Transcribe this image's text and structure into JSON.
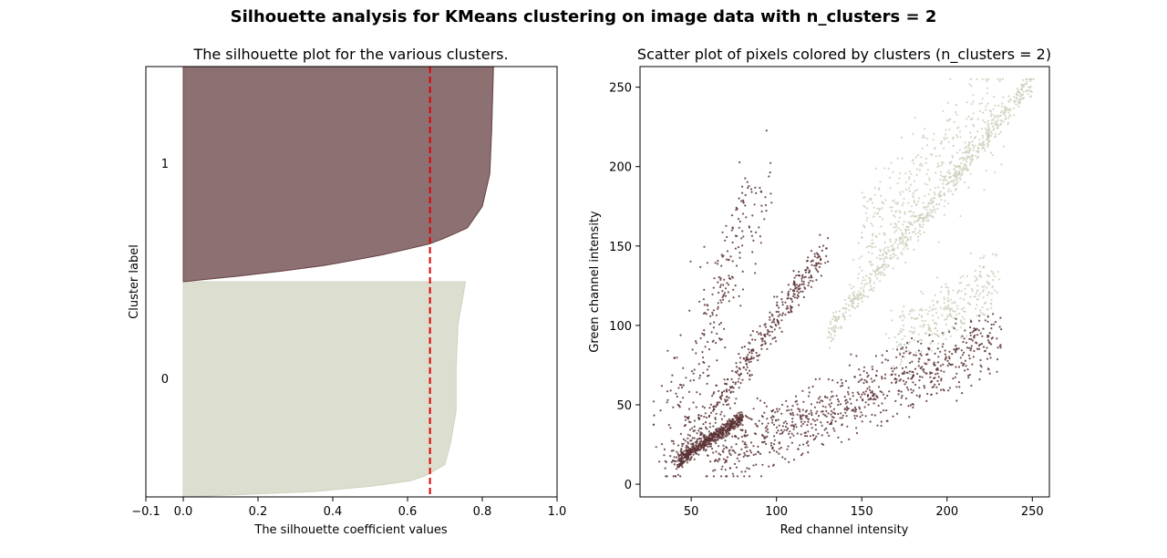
{
  "suptitle": "Silhouette analysis for KMeans clustering on image data with n_clusters = 2",
  "colors": {
    "cluster_0": "#cdd0bc",
    "cluster_1": "#5c3436",
    "avg_line": "#e00000"
  },
  "chart_data": [
    {
      "type": "area",
      "title": "The silhouette plot for the various clusters.",
      "xlabel": "The silhouette coefficient values",
      "ylabel": "Cluster label",
      "xlim": [
        -0.1,
        1.0
      ],
      "xticks": [
        -0.1,
        0.0,
        0.2,
        0.4,
        0.6,
        0.8,
        1.0
      ],
      "xtick_labels": [
        "−0.1",
        "0.0",
        "0.2",
        "0.4",
        "0.6",
        "0.8",
        "1.0"
      ],
      "average_silhouette": 0.66,
      "clusters": [
        {
          "label": "0",
          "color": "#cdd0bc",
          "alpha": 0.7,
          "profile": [
            [
              0.0,
              0.755
            ],
            [
              0.1,
              0.745
            ],
            [
              0.2,
              0.735
            ],
            [
              0.4,
              0.73
            ],
            [
              0.6,
              0.73
            ],
            [
              0.75,
              0.715
            ],
            [
              0.85,
              0.7
            ],
            [
              0.92,
              0.63
            ],
            [
              0.97,
              0.42
            ],
            [
              1.0,
              0.0
            ]
          ]
        },
        {
          "label": "1",
          "color": "#5c3436",
          "alpha": 0.7,
          "profile": [
            [
              0.0,
              0.83
            ],
            [
              0.3,
              0.825
            ],
            [
              0.5,
              0.82
            ],
            [
              0.65,
              0.8
            ],
            [
              0.75,
              0.76
            ],
            [
              0.82,
              0.67
            ],
            [
              0.88,
              0.52
            ],
            [
              0.93,
              0.36
            ],
            [
              0.97,
              0.17
            ],
            [
              1.0,
              0.0
            ]
          ]
        }
      ],
      "grid": false
    },
    {
      "type": "scatter",
      "title": "Scatter plot of pixels colored by clusters (n_clusters = 2)",
      "xlabel": "Red channel intensity",
      "ylabel": "Green channel intensity",
      "xlim": [
        20,
        260
      ],
      "ylim": [
        -8,
        263
      ],
      "xticks": [
        50,
        100,
        150,
        200,
        250
      ],
      "yticks": [
        0,
        50,
        100,
        150,
        200,
        250
      ],
      "series": [
        {
          "cluster": "0",
          "color": "#cdd0bc",
          "components": [
            {
              "x_range": [
                130,
                250
              ],
              "y_along": [
                [
                  130,
                  95
                ],
                [
                  250,
                  255
                ]
              ],
              "spread": 6
            },
            {
              "x_range": [
                150,
                230
              ],
              "y_along": [
                [
                  150,
                  150
                ],
                [
                  230,
                  240
                ]
              ],
              "spread": 25
            },
            {
              "x_range": [
                170,
                230
              ],
              "y_along": [
                [
                  170,
                  90
                ],
                [
                  230,
                  130
                ]
              ],
              "spread": 15
            }
          ]
        },
        {
          "cluster": "1",
          "color": "#5c3436",
          "components": [
            {
              "x_range": [
                43,
                80
              ],
              "y_along": [
                [
                  43,
                  15
                ],
                [
                  80,
                  42
                ]
              ],
              "spread": 3
            },
            {
              "x_range": [
                40,
                130
              ],
              "y_along": [
                [
                  40,
                  10
                ],
                [
                  130,
                  150
                ]
              ],
              "spread": 8
            },
            {
              "x_range": [
                35,
                90
              ],
              "y_along": [
                [
                  35,
                  20
                ],
                [
                  90,
                  195
                ]
              ],
              "spread": 25
            },
            {
              "x_range": [
                60,
                230
              ],
              "y_along": [
                [
                  60,
                  15
                ],
                [
                  230,
                  90
                ]
              ],
              "spread": 15
            }
          ]
        }
      ],
      "grid": false
    }
  ]
}
